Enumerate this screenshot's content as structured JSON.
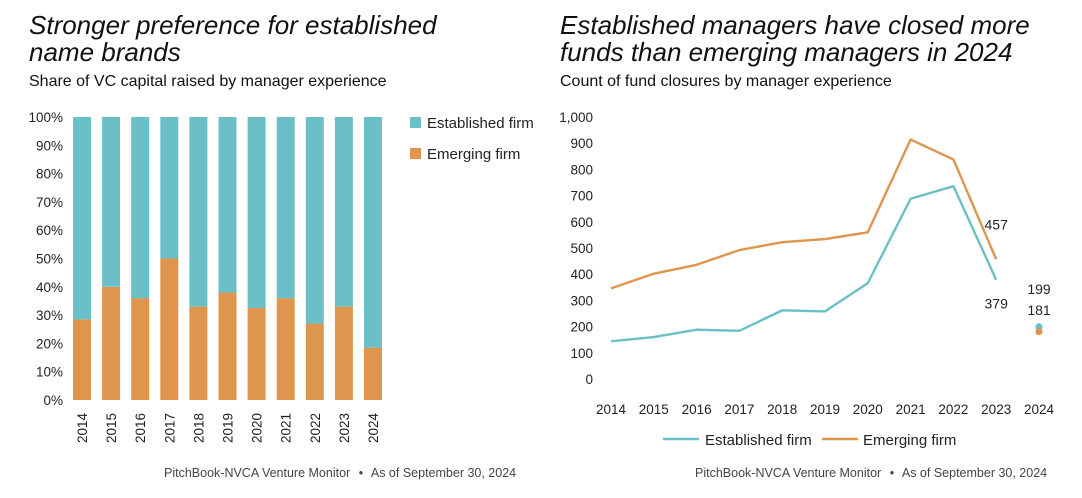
{
  "left": {
    "title_line1": "Stronger preference for established",
    "title_line2": "name brands",
    "subtitle": "Share of VC capital raised by manager experience",
    "source": "PitchBook-NVCA Venture Monitor",
    "source_separator": "•",
    "date": "As of September 30, 2024"
  },
  "right": {
    "title_line1": "Established managers have closed more",
    "title_line2": "funds than emerging managers in 2024",
    "subtitle": "Count of fund closures by manager experience",
    "source": "PitchBook-NVCA Venture Monitor",
    "source_separator": "•",
    "date": "As of September 30, 2024"
  },
  "chart_data": [
    {
      "type": "bar",
      "stacked": true,
      "title": "Stronger preference for established name brands",
      "subtitle": "Share of VC capital raised by manager experience",
      "categories": [
        "2014",
        "2015",
        "2016",
        "2017",
        "2018",
        "2019",
        "2020",
        "2021",
        "2022",
        "2023",
        "2024"
      ],
      "series": [
        {
          "name": "Established firm",
          "color": "#6bc0c8",
          "values": [
            71.5,
            60,
            64,
            50,
            67,
            62,
            67.5,
            64,
            73,
            67,
            81.5
          ]
        },
        {
          "name": "Emerging firm",
          "color": "#de954d",
          "values": [
            28.5,
            40,
            36,
            50,
            33,
            38,
            32.5,
            36,
            27,
            33,
            18.5
          ]
        }
      ],
      "yticks": [
        "0%",
        "10%",
        "20%",
        "30%",
        "40%",
        "50%",
        "60%",
        "70%",
        "80%",
        "90%",
        "100%"
      ],
      "ylim": [
        0,
        100
      ],
      "legend": "right"
    },
    {
      "type": "line",
      "title": "Established managers have closed more funds than emerging managers in 2024",
      "subtitle": "Count of fund closures by manager experience",
      "x": [
        "2014",
        "2015",
        "2016",
        "2017",
        "2018",
        "2019",
        "2020",
        "2021",
        "2022",
        "2023",
        "2024"
      ],
      "series": [
        {
          "name": "Established firm",
          "color": "#6bc0c8",
          "values": [
            144,
            160,
            188,
            184,
            262,
            258,
            366,
            688,
            736,
            379,
            199
          ]
        },
        {
          "name": "Emerging firm",
          "color": "#de954d",
          "values": [
            346,
            402,
            436,
            492,
            522,
            534,
            560,
            914,
            838,
            457,
            181
          ]
        }
      ],
      "labels": {
        "established_2023": "379",
        "emerging_2023": "457",
        "established_2024": "199",
        "emerging_2024": "181"
      },
      "yticks": [
        "0",
        "100",
        "200",
        "300",
        "400",
        "500",
        "600",
        "700",
        "800",
        "900",
        "1,000"
      ],
      "ylim": [
        0,
        1000
      ],
      "legend": "bottom"
    }
  ]
}
